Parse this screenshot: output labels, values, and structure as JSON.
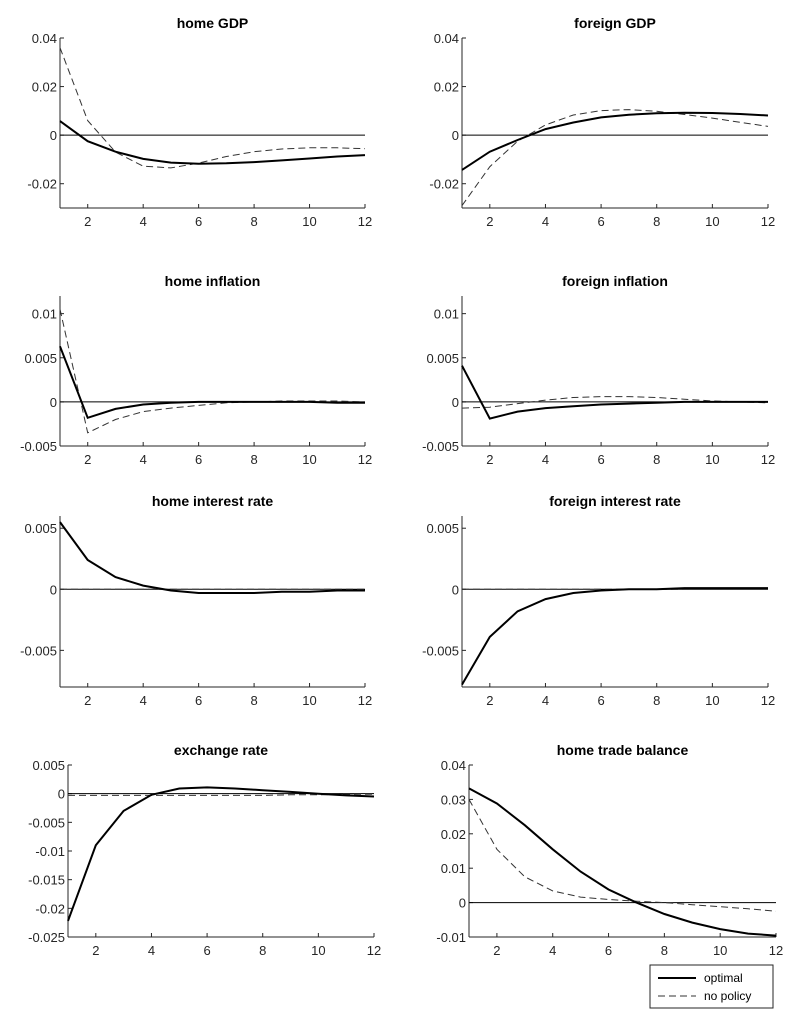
{
  "chart_data": [
    {
      "type": "line",
      "title": "home GDP",
      "xlim": [
        1,
        12
      ],
      "ylim": [
        -0.03,
        0.04
      ],
      "xticks": [
        2,
        4,
        6,
        8,
        10,
        12
      ],
      "yticks": [
        -0.02,
        0,
        0.02,
        0.04
      ],
      "ytick_labels": [
        "-0.02",
        "0",
        "0.02",
        "0.04"
      ],
      "x": [
        1,
        2,
        3,
        4,
        5,
        6,
        7,
        8,
        9,
        10,
        11,
        12
      ],
      "series": [
        {
          "name": "optimal",
          "style": "solid",
          "values": [
            0.0058,
            -0.0025,
            -0.0068,
            -0.0098,
            -0.0113,
            -0.0118,
            -0.0116,
            -0.0111,
            -0.0104,
            -0.0096,
            -0.0088,
            -0.0082
          ]
        },
        {
          "name": "no policy",
          "style": "dashed",
          "values": [
            0.036,
            0.006,
            -0.007,
            -0.0128,
            -0.0135,
            -0.0115,
            -0.0088,
            -0.0068,
            -0.0057,
            -0.0052,
            -0.0052,
            -0.0056
          ]
        }
      ]
    },
    {
      "type": "line",
      "title": "foreign GDP",
      "xlim": [
        1,
        12
      ],
      "ylim": [
        -0.03,
        0.04
      ],
      "xticks": [
        2,
        4,
        6,
        8,
        10,
        12
      ],
      "yticks": [
        -0.02,
        0,
        0.02,
        0.04
      ],
      "ytick_labels": [
        "-0.02",
        "0",
        "0.02",
        "0.04"
      ],
      "x": [
        1,
        2,
        3,
        4,
        5,
        6,
        7,
        8,
        9,
        10,
        11,
        12
      ],
      "series": [
        {
          "name": "optimal",
          "style": "solid",
          "values": [
            -0.0143,
            -0.0068,
            -0.002,
            0.0025,
            0.0052,
            0.0073,
            0.0084,
            0.009,
            0.0092,
            0.0091,
            0.0087,
            0.0081
          ]
        },
        {
          "name": "no policy",
          "style": "dashed",
          "values": [
            -0.029,
            -0.013,
            -0.0025,
            0.0042,
            0.0083,
            0.0101,
            0.0105,
            0.0098,
            0.0085,
            0.007,
            0.0053,
            0.0036
          ]
        }
      ]
    },
    {
      "type": "line",
      "title": "home inflation",
      "xlim": [
        1,
        12
      ],
      "ylim": [
        -0.005,
        0.012
      ],
      "xticks": [
        2,
        4,
        6,
        8,
        10,
        12
      ],
      "yticks": [
        -0.005,
        0,
        0.005,
        0.01
      ],
      "ytick_labels": [
        "-0.005",
        "0",
        "0.005",
        "0.01"
      ],
      "x": [
        1,
        2,
        3,
        4,
        5,
        6,
        7,
        8,
        9,
        10,
        11,
        12
      ],
      "series": [
        {
          "name": "optimal",
          "style": "solid",
          "values": [
            0.0063,
            -0.0018,
            -0.0008,
            -0.0003,
            -0.0001,
            0.0,
            0.0,
            0.0,
            0.0,
            0.0,
            -0.0001,
            -0.0001
          ]
        },
        {
          "name": "no policy",
          "style": "dashed",
          "values": [
            0.0105,
            -0.0035,
            -0.002,
            -0.0011,
            -0.0007,
            -0.0004,
            -0.0001,
            0.0,
            0.0001,
            0.0001,
            0.0001,
            0.0
          ]
        }
      ]
    },
    {
      "type": "line",
      "title": "foreign inflation",
      "xlim": [
        1,
        12
      ],
      "ylim": [
        -0.005,
        0.012
      ],
      "xticks": [
        2,
        4,
        6,
        8,
        10,
        12
      ],
      "yticks": [
        -0.005,
        0,
        0.005,
        0.01
      ],
      "ytick_labels": [
        "-0.005",
        "0",
        "0.005",
        "0.01"
      ],
      "x": [
        1,
        2,
        3,
        4,
        5,
        6,
        7,
        8,
        9,
        10,
        11,
        12
      ],
      "series": [
        {
          "name": "optimal",
          "style": "solid",
          "values": [
            0.0041,
            -0.0019,
            -0.0011,
            -0.0007,
            -0.0005,
            -0.0003,
            -0.0002,
            -0.0001,
            0.0,
            0.0,
            0.0,
            0.0
          ]
        },
        {
          "name": "no policy",
          "style": "dashed",
          "values": [
            -0.0007,
            -0.0006,
            -0.0002,
            0.0002,
            0.0005,
            0.0006,
            0.0006,
            0.0005,
            0.0003,
            0.0001,
            0.0,
            -0.0001
          ]
        }
      ]
    },
    {
      "type": "line",
      "title": "home interest rate",
      "xlim": [
        1,
        12
      ],
      "ylim": [
        -0.008,
        0.006
      ],
      "xticks": [
        2,
        4,
        6,
        8,
        10,
        12
      ],
      "yticks": [
        -0.005,
        0,
        0.005
      ],
      "ytick_labels": [
        "-0.005",
        "0",
        "0.005"
      ],
      "x": [
        1,
        2,
        3,
        4,
        5,
        6,
        7,
        8,
        9,
        10,
        11,
        12
      ],
      "series": [
        {
          "name": "optimal",
          "style": "solid",
          "values": [
            0.0055,
            0.0024,
            0.001,
            0.0003,
            -0.0001,
            -0.0003,
            -0.0003,
            -0.0003,
            -0.0002,
            -0.0002,
            -0.0001,
            -0.0001
          ]
        },
        {
          "name": "no policy",
          "style": "dashed",
          "values": [
            0,
            0,
            0,
            0,
            0,
            0,
            0,
            0,
            0,
            0,
            0,
            0
          ]
        }
      ]
    },
    {
      "type": "line",
      "title": "foreign interest rate",
      "xlim": [
        1,
        12
      ],
      "ylim": [
        -0.008,
        0.006
      ],
      "xticks": [
        2,
        4,
        6,
        8,
        10,
        12
      ],
      "yticks": [
        -0.005,
        0,
        0.005
      ],
      "ytick_labels": [
        "-0.005",
        "0",
        "0.005"
      ],
      "x": [
        1,
        2,
        3,
        4,
        5,
        6,
        7,
        8,
        9,
        10,
        11,
        12
      ],
      "series": [
        {
          "name": "optimal",
          "style": "solid",
          "values": [
            -0.0078,
            -0.0039,
            -0.0018,
            -0.0008,
            -0.0003,
            -0.0001,
            0.0,
            0.0,
            0.0001,
            0.0001,
            0.0001,
            0.0001
          ]
        },
        {
          "name": "no policy",
          "style": "dashed",
          "values": [
            0,
            0,
            0,
            0,
            0,
            0,
            0,
            0,
            0,
            0,
            0,
            0
          ]
        }
      ]
    },
    {
      "type": "line",
      "title": "exchange rate",
      "xlim": [
        1,
        12
      ],
      "ylim": [
        -0.025,
        0.005
      ],
      "xticks": [
        2,
        4,
        6,
        8,
        10,
        12
      ],
      "yticks": [
        -0.025,
        -0.02,
        -0.015,
        -0.01,
        -0.005,
        0,
        0.005
      ],
      "ytick_labels": [
        "-0.025",
        "-0.02",
        "-0.015",
        "-0.01",
        "-0.005",
        "0",
        "0.005"
      ],
      "x": [
        1,
        2,
        3,
        4,
        5,
        6,
        7,
        8,
        9,
        10,
        11,
        12
      ],
      "series": [
        {
          "name": "optimal",
          "style": "solid",
          "values": [
            -0.0222,
            -0.009,
            -0.003,
            -0.0002,
            0.0009,
            0.0011,
            0.0009,
            0.0006,
            0.0003,
            0.0,
            -0.0003,
            -0.0005
          ]
        },
        {
          "name": "no policy",
          "style": "dashed",
          "values": [
            -0.0003,
            -0.0003,
            -0.0003,
            -0.0003,
            -0.0003,
            -0.0003,
            -0.0003,
            -0.0003,
            -0.0002,
            -0.0002,
            -0.0001,
            -0.0001
          ]
        }
      ]
    },
    {
      "type": "line",
      "title": "home trade balance",
      "xlim": [
        1,
        12
      ],
      "ylim": [
        -0.01,
        0.04
      ],
      "xticks": [
        2,
        4,
        6,
        8,
        10,
        12
      ],
      "yticks": [
        -0.01,
        0,
        0.01,
        0.02,
        0.03,
        0.04
      ],
      "ytick_labels": [
        "-0.01",
        "0",
        "0.01",
        "0.02",
        "0.03",
        "0.04"
      ],
      "x": [
        1,
        2,
        3,
        4,
        5,
        6,
        7,
        8,
        9,
        10,
        11,
        12
      ],
      "series": [
        {
          "name": "optimal",
          "style": "solid",
          "values": [
            0.0332,
            0.0288,
            0.0225,
            0.0155,
            0.009,
            0.0038,
            0.0,
            -0.0033,
            -0.0058,
            -0.0077,
            -0.009,
            -0.0096
          ]
        },
        {
          "name": "no policy",
          "style": "dashed",
          "values": [
            0.03,
            0.0155,
            0.0075,
            0.0034,
            0.0016,
            0.0009,
            0.0004,
            0.0,
            -0.0006,
            -0.0012,
            -0.0018,
            -0.0025
          ]
        }
      ]
    }
  ],
  "legend": {
    "placement": "bottom-right",
    "entries": [
      {
        "label": "optimal",
        "style": "solid"
      },
      {
        "label": "no policy",
        "style": "dashed"
      }
    ]
  }
}
